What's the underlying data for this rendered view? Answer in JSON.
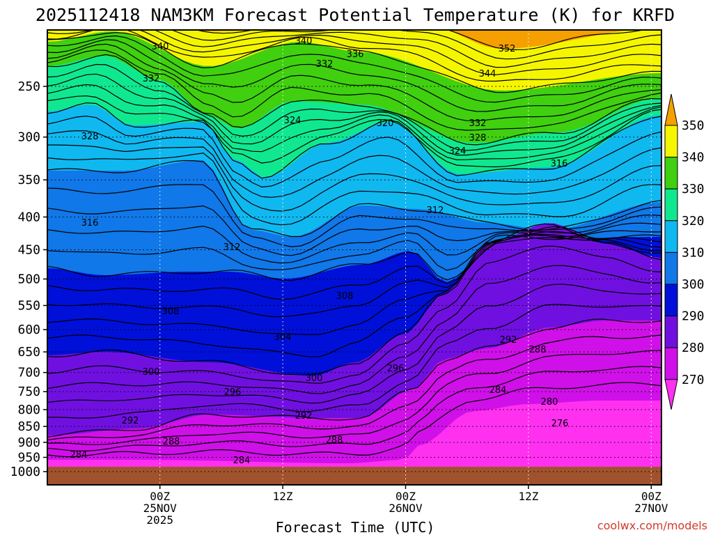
{
  "chart_data": {
    "type": "contour",
    "title": "2025112418 NAM3KM Forecast Potential Temperature (K) for KRFD",
    "xlabel": "Forecast Time (UTC)",
    "ylabel": "",
    "y_axis": {
      "label": "",
      "scale": "log",
      "inverted": true,
      "unit": "hPa",
      "range": [
        1000,
        200
      ],
      "ticks": [
        250,
        300,
        350,
        400,
        450,
        500,
        550,
        600,
        650,
        700,
        750,
        800,
        850,
        900,
        950,
        1000
      ]
    },
    "x_axis": {
      "range_hours": [
        -5,
        55
      ],
      "gridlines": true,
      "ticks": [
        {
          "hour": 6,
          "line1": "00Z",
          "line2": "25NOV",
          "line3": "2025"
        },
        {
          "hour": 18,
          "line1": "12Z",
          "line2": "",
          "line3": ""
        },
        {
          "hour": 30,
          "line1": "00Z",
          "line2": "26NOV",
          "line3": ""
        },
        {
          "hour": 42,
          "line1": "12Z",
          "line2": "",
          "line3": ""
        },
        {
          "hour": 54,
          "line1": "00Z",
          "line2": "27NOV",
          "line3": ""
        }
      ]
    },
    "colorbar": {
      "ticks": [
        350,
        340,
        330,
        320,
        310,
        300,
        290,
        280,
        270
      ],
      "bands": [
        {
          "from": 350,
          "to": 360,
          "color": "#f5a000"
        },
        {
          "from": 340,
          "to": 350,
          "color": "#f5f500"
        },
        {
          "from": 330,
          "to": 340,
          "color": "#40d010"
        },
        {
          "from": 320,
          "to": 330,
          "color": "#10e890"
        },
        {
          "from": 310,
          "to": 320,
          "color": "#10b8f0"
        },
        {
          "from": 300,
          "to": 310,
          "color": "#1078e8"
        },
        {
          "from": 290,
          "to": 300,
          "color": "#0010d8"
        },
        {
          "from": 280,
          "to": 290,
          "color": "#7010e0"
        },
        {
          "from": 270,
          "to": 280,
          "color": "#d010e8"
        },
        {
          "from": 260,
          "to": 270,
          "color": "#ff30f0"
        }
      ]
    },
    "contour_interval": 2,
    "contour_labels": [
      "340",
      "340",
      "336",
      "352",
      "332",
      "332",
      "344",
      "324",
      "332",
      "328",
      "320",
      "328",
      "324",
      "316",
      "316",
      "312",
      "312",
      "308",
      "308",
      "304",
      "292",
      "288",
      "300",
      "300",
      "296",
      "296",
      "284",
      "280",
      "292",
      "292",
      "276",
      "288",
      "288",
      "284",
      "284"
    ],
    "fields_note": "",
    "stations_ground": "brown terrain below 970 hPa"
  },
  "credit": "coolwx.com/models"
}
